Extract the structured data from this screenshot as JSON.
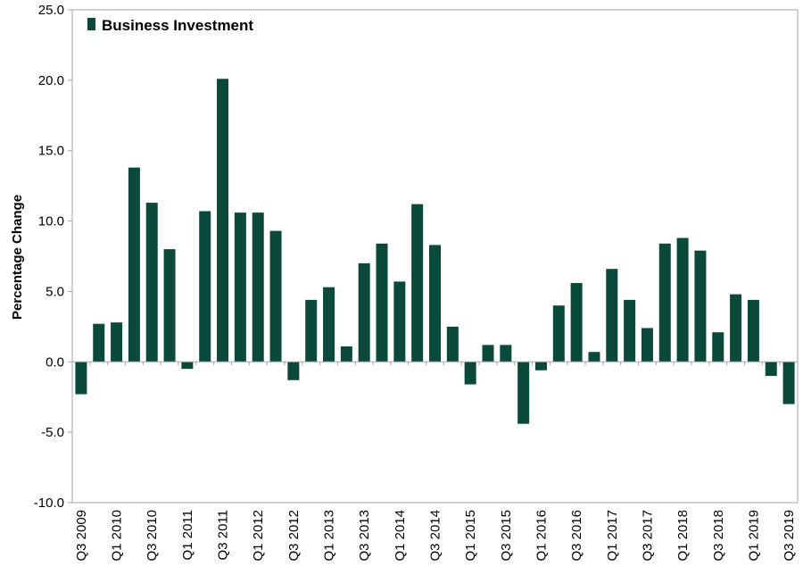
{
  "chart_data": {
    "type": "bar",
    "title": "",
    "xlabel": "",
    "ylabel": "Percentage Change",
    "ylim": [
      -10,
      25
    ],
    "yticks": [
      "25.0",
      "20.0",
      "15.0",
      "10.0",
      "5.0",
      "0.0",
      "-5.0",
      "-10.0"
    ],
    "yticks_values": [
      25,
      20,
      15,
      10,
      5,
      0,
      -5,
      -10
    ],
    "grid": false,
    "legend_position": "top-left",
    "colors": {
      "bar": "#0b4a3a",
      "axis": "#a6a6a6"
    },
    "categories": [
      "Q3 2009",
      "Q4 2009",
      "Q1 2010",
      "Q2 2010",
      "Q3 2010",
      "Q4 2010",
      "Q1 2011",
      "Q2 2011",
      "Q3 2011",
      "Q4 2011",
      "Q1 2012",
      "Q2 2012",
      "Q3 2012",
      "Q4 2012",
      "Q1 2013",
      "Q2 2013",
      "Q3 2013",
      "Q4 2013",
      "Q1 2014",
      "Q2 2014",
      "Q3 2014",
      "Q4 2014",
      "Q1 2015",
      "Q2 2015",
      "Q3 2015",
      "Q4 2015",
      "Q1 2016",
      "Q2 2016",
      "Q3 2016",
      "Q4 2016",
      "Q1 2017",
      "Q2 2017",
      "Q3 2017",
      "Q4 2017",
      "Q1 2018",
      "Q2 2018",
      "Q3 2018",
      "Q4 2018",
      "Q1 2019",
      "Q2 2019",
      "Q3 2019"
    ],
    "visible_tick_labels": [
      "Q3 2009",
      "Q1 2010",
      "Q3 2010",
      "Q1 2011",
      "Q3 2011",
      "Q1 2012",
      "Q3 2012",
      "Q1 2013",
      "Q3 2013",
      "Q1 2014",
      "Q3 2014",
      "Q1 2015",
      "Q3 2015",
      "Q1 2016",
      "Q3 2016",
      "Q1 2017",
      "Q3 2017",
      "Q1 2018",
      "Q3 2018",
      "Q1 2019",
      "Q3 2019"
    ],
    "series": [
      {
        "name": "Business Investment",
        "values": [
          -2.3,
          2.7,
          2.8,
          13.8,
          11.3,
          8.0,
          -0.5,
          10.7,
          20.1,
          10.6,
          10.6,
          9.3,
          -1.3,
          4.4,
          5.3,
          1.1,
          7.0,
          8.4,
          5.7,
          11.2,
          8.3,
          2.5,
          -1.6,
          1.2,
          1.2,
          -4.4,
          -0.6,
          4.0,
          5.6,
          0.7,
          6.6,
          4.4,
          2.4,
          8.4,
          8.8,
          7.9,
          2.1,
          4.8,
          4.4,
          -1.0,
          -3.0
        ]
      }
    ]
  }
}
